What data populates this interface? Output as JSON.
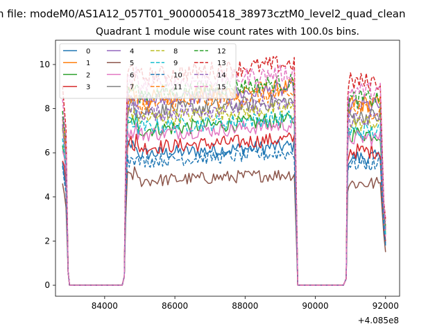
{
  "chart_data": {
    "type": "line",
    "suptitle": "n file: modeM0/AS1A12_057T01_9000005418_38973cztM0_level2_quad_clean",
    "title": "Quadrant 1 module wise count rates with 100.0s bins.",
    "xlabel": "",
    "ylabel": "",
    "x_offset_label": "+4.085e8",
    "xlim": [
      82600,
      92400
    ],
    "ylim": [
      -0.5,
      11.1
    ],
    "x_ticks": [
      84000,
      86000,
      88000,
      90000,
      92000
    ],
    "x_tick_labels": [
      "84000",
      "86000",
      "88000",
      "90000",
      "92000"
    ],
    "y_ticks": [
      0,
      2,
      4,
      6,
      8,
      10
    ],
    "y_tick_labels": [
      "0",
      "2",
      "4",
      "6",
      "8",
      "10"
    ],
    "grid": false,
    "legend_position": "top-left",
    "legend_columns": 4,
    "segments": [
      {
        "name": "gti-1",
        "x_start": 82800,
        "x_end": 82900
      },
      {
        "name": "gap-1",
        "x_start": 83000,
        "x_end": 84500
      },
      {
        "name": "gti-2",
        "x_start": 84650,
        "x_end": 89400
      },
      {
        "name": "gap-2",
        "x_start": 89500,
        "x_end": 90800
      },
      {
        "name": "gti-3",
        "x_start": 90950,
        "x_end": 91850
      }
    ],
    "series": [
      {
        "name": "0",
        "color": "#1f77b4",
        "dash": "solid",
        "base": 5.9,
        "end_value": 1.9
      },
      {
        "name": "1",
        "color": "#ff7f0e",
        "dash": "solid",
        "base": 8.4,
        "end_value": 2.6
      },
      {
        "name": "2",
        "color": "#2ca02c",
        "dash": "solid",
        "base": 7.0,
        "end_value": 2.3
      },
      {
        "name": "3",
        "color": "#d62728",
        "dash": "solid",
        "base": 6.2,
        "end_value": 2.0
      },
      {
        "name": "4",
        "color": "#9467bd",
        "dash": "solid",
        "base": 8.3,
        "end_value": 2.6
      },
      {
        "name": "5",
        "color": "#8c564b",
        "dash": "solid",
        "base": 4.7,
        "end_value": 1.5
      },
      {
        "name": "6",
        "color": "#e377c2",
        "dash": "solid",
        "base": 6.8,
        "end_value": 2.2
      },
      {
        "name": "7",
        "color": "#7f7f7f",
        "dash": "solid",
        "base": 7.8,
        "end_value": 2.5
      },
      {
        "name": "8",
        "color": "#bcbd22",
        "dash": "dashed",
        "base": 7.5,
        "end_value": 2.4
      },
      {
        "name": "9",
        "color": "#17becf",
        "dash": "dashed",
        "base": 7.1,
        "end_value": 2.3
      },
      {
        "name": "10",
        "color": "#1f77b4",
        "dash": "dashed",
        "base": 5.6,
        "end_value": 1.8
      },
      {
        "name": "11",
        "color": "#ff7f0e",
        "dash": "dashed",
        "base": 8.1,
        "end_value": 2.6
      },
      {
        "name": "12",
        "color": "#2ca02c",
        "dash": "dashed",
        "base": 8.6,
        "end_value": 2.7
      },
      {
        "name": "13",
        "color": "#d62728",
        "dash": "dashed",
        "base": 9.4,
        "end_value": 3.0
      },
      {
        "name": "14",
        "color": "#9467bd",
        "dash": "dashed",
        "base": 7.7,
        "end_value": 2.5
      },
      {
        "name": "15",
        "color": "#e377c2",
        "dash": "dashed",
        "base": 9.0,
        "end_value": 2.9
      }
    ]
  }
}
